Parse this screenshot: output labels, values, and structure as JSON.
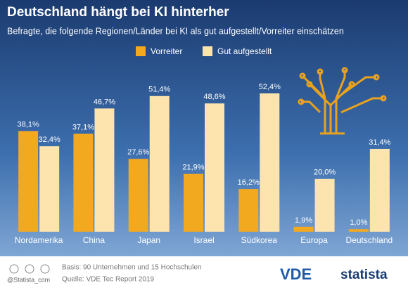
{
  "chart_data": {
    "type": "bar",
    "title": "Deutschland hängt bei KI hinterher",
    "subtitle": "Befragte, die folgende Regionen/Länder bei KI als gut aufgestellt/Vorreiter einschätzen",
    "categories": [
      "Nordamerika",
      "China",
      "Japan",
      "Israel",
      "Südkorea",
      "Europa",
      "Deutschland"
    ],
    "series": [
      {
        "name": "Vorreiter",
        "color": "#f2a91f",
        "values": [
          38.1,
          37.1,
          27.6,
          21.9,
          16.2,
          1.9,
          1.0
        ],
        "value_labels": [
          "38,1%",
          "37,1%",
          "27,6%",
          "21,9%",
          "16,2%",
          "1,9%",
          "1,0%"
        ]
      },
      {
        "name": "Gut aufgestellt",
        "color": "#fde4ae",
        "values": [
          32.4,
          46.7,
          51.4,
          48.6,
          52.4,
          20.0,
          31.4
        ],
        "value_labels": [
          "32,4%",
          "46,7%",
          "51,4%",
          "48,6%",
          "52,4%",
          "20,0%",
          "31,4%"
        ]
      }
    ],
    "legend": "top",
    "footer": {
      "basis": "Basis: 90 Unternehmen und 15 Hochschulen",
      "source": "Quelle: VDE Tec Report 2019",
      "credit": "@Statista_com",
      "logo_left": "VDE",
      "logo_right": "statista"
    }
  }
}
